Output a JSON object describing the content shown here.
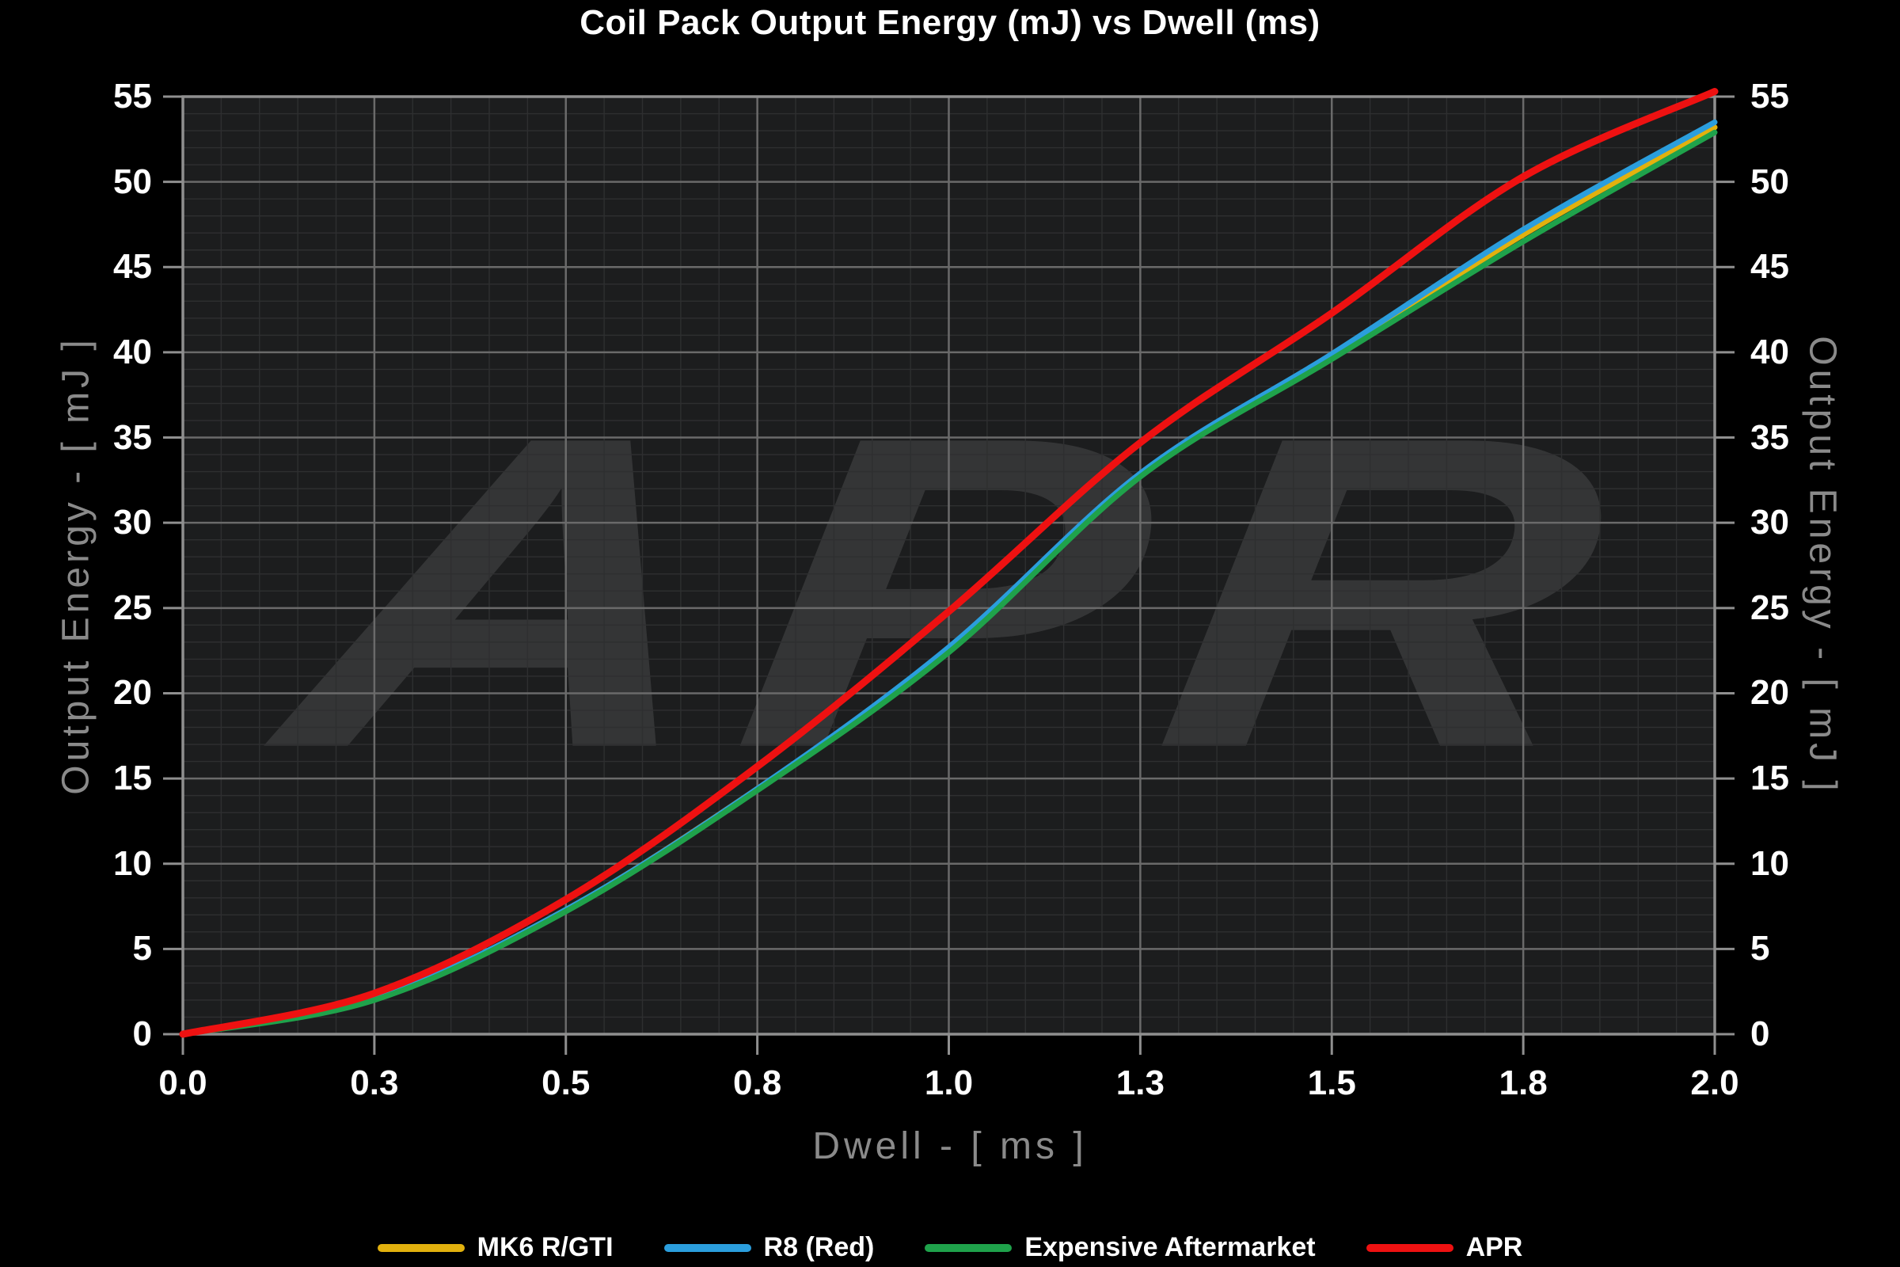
{
  "title": "Coil Pack Output Energy (mJ) vs Dwell (ms)",
  "watermark_text": "APR",
  "colors": {
    "background": "#000000",
    "plot_background": "#1c1d1e",
    "major_grid": "#6a6a6a",
    "minor_grid": "#2e2f30",
    "frame": "#8f8f8f",
    "tick_label": "#ffffff",
    "axis_title": "#8a8a8a"
  },
  "axes": {
    "x": {
      "title": "Dwell - [ ms ]",
      "min": 0,
      "max": 2,
      "major_step": 0.25,
      "minor_step": 0.05,
      "tick_labels": [
        "0.0",
        "0.3",
        "0.5",
        "0.8",
        "1.0",
        "1.3",
        "1.5",
        "1.8",
        "2.0"
      ]
    },
    "y": {
      "title_left": "Output Energy - [ mJ ]",
      "title_right": "Output Energy - [ mJ ]",
      "min": 0,
      "max": 55,
      "major_step": 5,
      "minor_step": 1,
      "tick_labels": [
        "0",
        "5",
        "10",
        "15",
        "20",
        "25",
        "30",
        "35",
        "40",
        "45",
        "50",
        "55"
      ]
    }
  },
  "chart_data": {
    "type": "line",
    "title": "Coil Pack Output Energy (mJ) vs Dwell (ms)",
    "xlabel": "Dwell - [ ms ]",
    "ylabel": "Output Energy - [ mJ ]",
    "xlim": [
      0,
      2
    ],
    "ylim": [
      0,
      55
    ],
    "grid": "major+minor",
    "legend_position": "bottom-center",
    "x": [
      0,
      0.25,
      0.5,
      0.75,
      1.0,
      1.25,
      1.5,
      1.75,
      2.0
    ],
    "series": [
      {
        "name": "MK6 R/GTI",
        "color": "#E2B10E",
        "width": 7,
        "values": [
          0,
          2.1,
          7.3,
          14.4,
          22.5,
          32.8,
          39.8,
          46.9,
          53.2
        ]
      },
      {
        "name": "R8 (Red)",
        "color": "#2B9EDD",
        "width": 7,
        "values": [
          0,
          2.1,
          7.3,
          14.4,
          22.7,
          32.9,
          39.9,
          47.2,
          53.5
        ]
      },
      {
        "name": "Expensive Aftermarket",
        "color": "#1FA24B",
        "width": 7,
        "values": [
          0,
          2.0,
          7.2,
          14.3,
          22.4,
          32.7,
          39.6,
          46.5,
          52.9
        ]
      },
      {
        "name": "APR",
        "color": "#EE1111",
        "width": 9,
        "values": [
          0,
          2.4,
          7.9,
          15.7,
          24.8,
          34.7,
          42.3,
          50.3,
          55.3
        ]
      }
    ]
  }
}
